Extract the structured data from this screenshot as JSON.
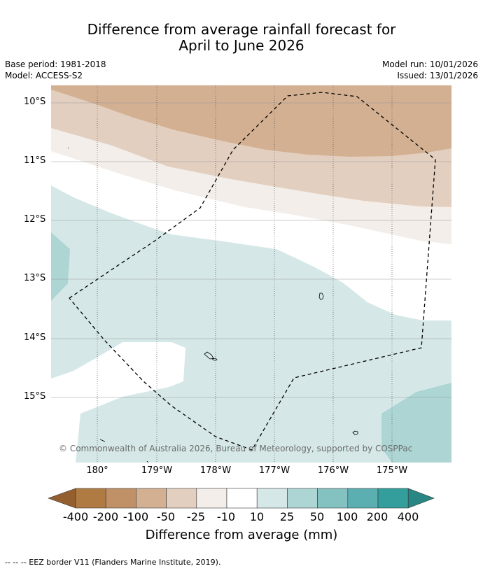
{
  "title_line1": "Difference from average rainfall forecast for",
  "title_line2": "April to June 2026",
  "meta_left": [
    "Base period: 1981-2018",
    "Model: ACCESS-S2"
  ],
  "meta_right": [
    "Model run: 10/01/2026",
    "Issued: 13/01/2026"
  ],
  "lat_labels": [
    "10°S",
    "11°S",
    "12°S",
    "13°S",
    "14°S",
    "15°S"
  ],
  "lon_labels": [
    "180°",
    "179°W",
    "178°W",
    "177°W",
    "176°W",
    "175°W"
  ],
  "copyright": "© Commonwealth of Australia 2026, Bureau of Meteorology, supported by COSPPac",
  "colorbar": {
    "labels": [
      "-400",
      "-200",
      "-100",
      "-50",
      "-25",
      "-10",
      "10",
      "25",
      "50",
      "100",
      "200",
      "400"
    ],
    "title": "Difference from average (mm)",
    "colors": [
      "#935f2e",
      "#b07b42",
      "#c09166",
      "#d3b092",
      "#e3cfbf",
      "#f3eee9",
      "#ffffff",
      "#d5e8e7",
      "#acd5d4",
      "#84c1c1",
      "#5bafb0",
      "#339e9c",
      "#288685"
    ]
  },
  "footnote": "--  --  -- EEZ border V11 (Flanders Marine Institute, 2019)."
}
